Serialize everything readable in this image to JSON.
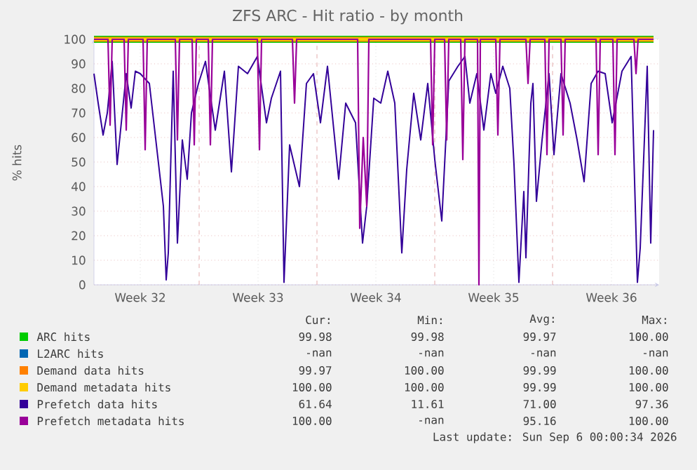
{
  "chart_data": {
    "type": "line",
    "title": "ZFS ARC - Hit ratio - by month",
    "ylabel": "% hits",
    "xlim": [
      "2026-08-03T18:00",
      "2026-09-06T08:00"
    ],
    "ylim": [
      0,
      100
    ],
    "xticks": [
      {
        "value": "2026-08-06T12:00",
        "label": "Week 32"
      },
      {
        "value": "2026-08-10T00:00",
        "label": null
      },
      {
        "value": "2026-08-13T12:00",
        "label": "Week 33"
      },
      {
        "value": "2026-08-17T00:00",
        "label": null
      },
      {
        "value": "2026-08-20T12:00",
        "label": "Week 34"
      },
      {
        "value": "2026-08-24T00:00",
        "label": null
      },
      {
        "value": "2026-08-27T12:00",
        "label": "Week 35"
      },
      {
        "value": "2026-08-31T00:00",
        "label": null
      },
      {
        "value": "2026-09-03T12:00",
        "label": "Week 36"
      }
    ],
    "yticks": [
      0,
      10,
      20,
      30,
      40,
      50,
      60,
      70,
      80,
      90,
      100
    ],
    "grid": true,
    "legend": "bottom",
    "series": [
      {
        "name": "ARC hits",
        "color": "#00cc00",
        "x": [
          "2026-08-03T18:00",
          "2026-09-06T00:00"
        ],
        "values": [
          100,
          100
        ]
      },
      {
        "name": "L2ARC hits",
        "color": "#0066b3",
        "values": [
          null
        ]
      },
      {
        "name": "Demand data hits",
        "color": "#ff8000",
        "x": [
          "2026-08-03T18:00",
          "2026-09-06T00:00"
        ],
        "values": [
          100,
          100
        ]
      },
      {
        "name": "Demand metadata hits",
        "color": "#ffcc00",
        "x": [
          "2026-08-03T18:00",
          "2026-09-06T00:00"
        ],
        "values": [
          100,
          100
        ]
      },
      {
        "name": "Prefetch data hits",
        "color": "#330099",
        "x": [
          "2026-08-03T18:00",
          "2026-08-04T00:00",
          "2026-08-04T07:00",
          "2026-08-04T13:00",
          "2026-08-04T20:00",
          "2026-08-05T03:00",
          "2026-08-05T09:00",
          "2026-08-05T16:00",
          "2026-08-05T23:00",
          "2026-08-06T05:00",
          "2026-08-06T12:00",
          "2026-08-07T01:00",
          "2026-08-07T11:00",
          "2026-08-07T21:00",
          "2026-08-08T01:00",
          "2026-08-08T04:00",
          "2026-08-08T11:00",
          "2026-08-08T17:00",
          "2026-08-09T00:00",
          "2026-08-09T07:00",
          "2026-08-09T13:00",
          "2026-08-09T23:00",
          "2026-08-10T09:00",
          "2026-08-10T23:00",
          "2026-08-11T12:00",
          "2026-08-11T22:00",
          "2026-08-12T08:00",
          "2026-08-12T21:00",
          "2026-08-13T11:00",
          "2026-08-14T00:00",
          "2026-08-14T07:00",
          "2026-08-14T20:00",
          "2026-08-15T01:00",
          "2026-08-15T09:00",
          "2026-08-15T23:00",
          "2026-08-16T09:00",
          "2026-08-16T19:00",
          "2026-08-17T05:00",
          "2026-08-17T15:00",
          "2026-08-18T07:00",
          "2026-08-18T17:00",
          "2026-08-19T07:00",
          "2026-08-19T17:00",
          "2026-08-19T23:00",
          "2026-08-20T09:00",
          "2026-08-20T19:00",
          "2026-08-21T05:00",
          "2026-08-21T15:00",
          "2026-08-22T01:00",
          "2026-08-22T08:00",
          "2026-08-22T18:00",
          "2026-08-23T04:00",
          "2026-08-23T14:00",
          "2026-08-24T00:00",
          "2026-08-24T10:00",
          "2026-08-24T20:00",
          "2026-08-25T09:00",
          "2026-08-25T19:00",
          "2026-08-26T02:00",
          "2026-08-26T12:00",
          "2026-08-26T22:00",
          "2026-08-27T08:00",
          "2026-08-27T15:00",
          "2026-08-28T01:00",
          "2026-08-28T11:00",
          "2026-08-28T17:00",
          "2026-08-29T00:00",
          "2026-08-29T07:00",
          "2026-08-29T10:00",
          "2026-08-29T17:00",
          "2026-08-29T20:00",
          "2026-08-30T01:00",
          "2026-08-30T09:00",
          "2026-08-30T19:00",
          "2026-08-31T02:00",
          "2026-08-31T12:00",
          "2026-09-01T01:00",
          "2026-09-01T11:00",
          "2026-09-01T21:00",
          "2026-09-02T07:00",
          "2026-09-02T17:00",
          "2026-09-03T03:00",
          "2026-09-03T13:00",
          "2026-09-04T03:00",
          "2026-09-04T16:00",
          "2026-09-05T01:00",
          "2026-09-05T05:00",
          "2026-09-05T15:00",
          "2026-09-05T20:00",
          "2026-09-06T00:00"
        ],
        "values": [
          86,
          74,
          61,
          70,
          91,
          49,
          66,
          86,
          72,
          87,
          86,
          82,
          57,
          32,
          2,
          13,
          87,
          17,
          59,
          43,
          70,
          82,
          91,
          63,
          87,
          46,
          89,
          86,
          93,
          66,
          76,
          87,
          1,
          57,
          40,
          82,
          86,
          66,
          89,
          43,
          74,
          66,
          17,
          32,
          76,
          74,
          87,
          74,
          13,
          47,
          78,
          59,
          82,
          51,
          26,
          83,
          89,
          93,
          74,
          86,
          63,
          86,
          78,
          89,
          80,
          49,
          1,
          38,
          11,
          74,
          82,
          34,
          59,
          86,
          53,
          86,
          74,
          59,
          42,
          82,
          87,
          86,
          66,
          87,
          93,
          1,
          15,
          89,
          17,
          63
        ]
      },
      {
        "name": "Prefetch metadata hits",
        "color": "#990099",
        "x": [
          "2026-08-03T18:00",
          "2026-08-04T14:00",
          "2026-08-04T17:00",
          "2026-08-04T20:00",
          "2026-08-05T13:00",
          "2026-08-05T16:00",
          "2026-08-05T19:00",
          "2026-08-06T16:00",
          "2026-08-06T19:00",
          "2026-08-06T22:00",
          "2026-08-08T14:00",
          "2026-08-08T17:00",
          "2026-08-08T20:00",
          "2026-08-09T14:00",
          "2026-08-09T17:00",
          "2026-08-09T20:00",
          "2026-08-10T13:00",
          "2026-08-10T16:00",
          "2026-08-10T19:00",
          "2026-08-13T11:00",
          "2026-08-13T14:00",
          "2026-08-13T17:00",
          "2026-08-15T13:00",
          "2026-08-15T16:00",
          "2026-08-15T19:00",
          "2026-08-19T10:00",
          "2026-08-19T13:00",
          "2026-08-19T18:00",
          "2026-08-19T23:00",
          "2026-08-20T02:00",
          "2026-08-23T18:00",
          "2026-08-23T21:00",
          "2026-08-24T00:00",
          "2026-08-24T14:00",
          "2026-08-24T17:00",
          "2026-08-24T20:00",
          "2026-08-25T13:00",
          "2026-08-25T16:00",
          "2026-08-25T19:00",
          "2026-08-26T13:00",
          "2026-08-26T15:00",
          "2026-08-26T17:00",
          "2026-08-27T15:00",
          "2026-08-27T18:00",
          "2026-08-27T21:00",
          "2026-08-29T10:00",
          "2026-08-29T13:00",
          "2026-08-29T16:00",
          "2026-08-30T13:00",
          "2026-08-30T16:00",
          "2026-08-30T19:00",
          "2026-08-31T12:00",
          "2026-08-31T15:00",
          "2026-08-31T18:00",
          "2026-09-02T14:00",
          "2026-09-02T17:00",
          "2026-09-02T20:00",
          "2026-09-03T14:00",
          "2026-09-03T17:00",
          "2026-09-03T20:00",
          "2026-09-04T20:00",
          "2026-09-04T23:00",
          "2026-09-05T02:00",
          "2026-09-06T00:00"
        ],
        "values": [
          100,
          100,
          65,
          100,
          100,
          63,
          100,
          100,
          55,
          100,
          100,
          59,
          100,
          100,
          57,
          100,
          100,
          57,
          100,
          100,
          55,
          100,
          100,
          74,
          100,
          100,
          23,
          60,
          32,
          100,
          100,
          57,
          100,
          100,
          59,
          100,
          100,
          51,
          100,
          100,
          0,
          100,
          100,
          61,
          100,
          100,
          82,
          100,
          100,
          53,
          100,
          100,
          61,
          100,
          100,
          53,
          100,
          100,
          53,
          100,
          100,
          86,
          100,
          100
        ]
      }
    ],
    "annotations": [
      "Cur:",
      "Min:",
      "Avg:",
      "Max:",
      "99.98",
      "99.98",
      "99.97",
      "100.00",
      "-nan",
      "-nan",
      "-nan",
      "-nan",
      "99.97",
      "100.00",
      "99.99",
      "100.00",
      "100.00",
      "100.00",
      "99.99",
      "100.00",
      "61.64",
      "11.61",
      "71.00",
      "97.36",
      "100.00",
      "-nan",
      "95.16",
      "100.00",
      "Last update: Sun Sep  6 00:00:34 2026"
    ]
  }
}
